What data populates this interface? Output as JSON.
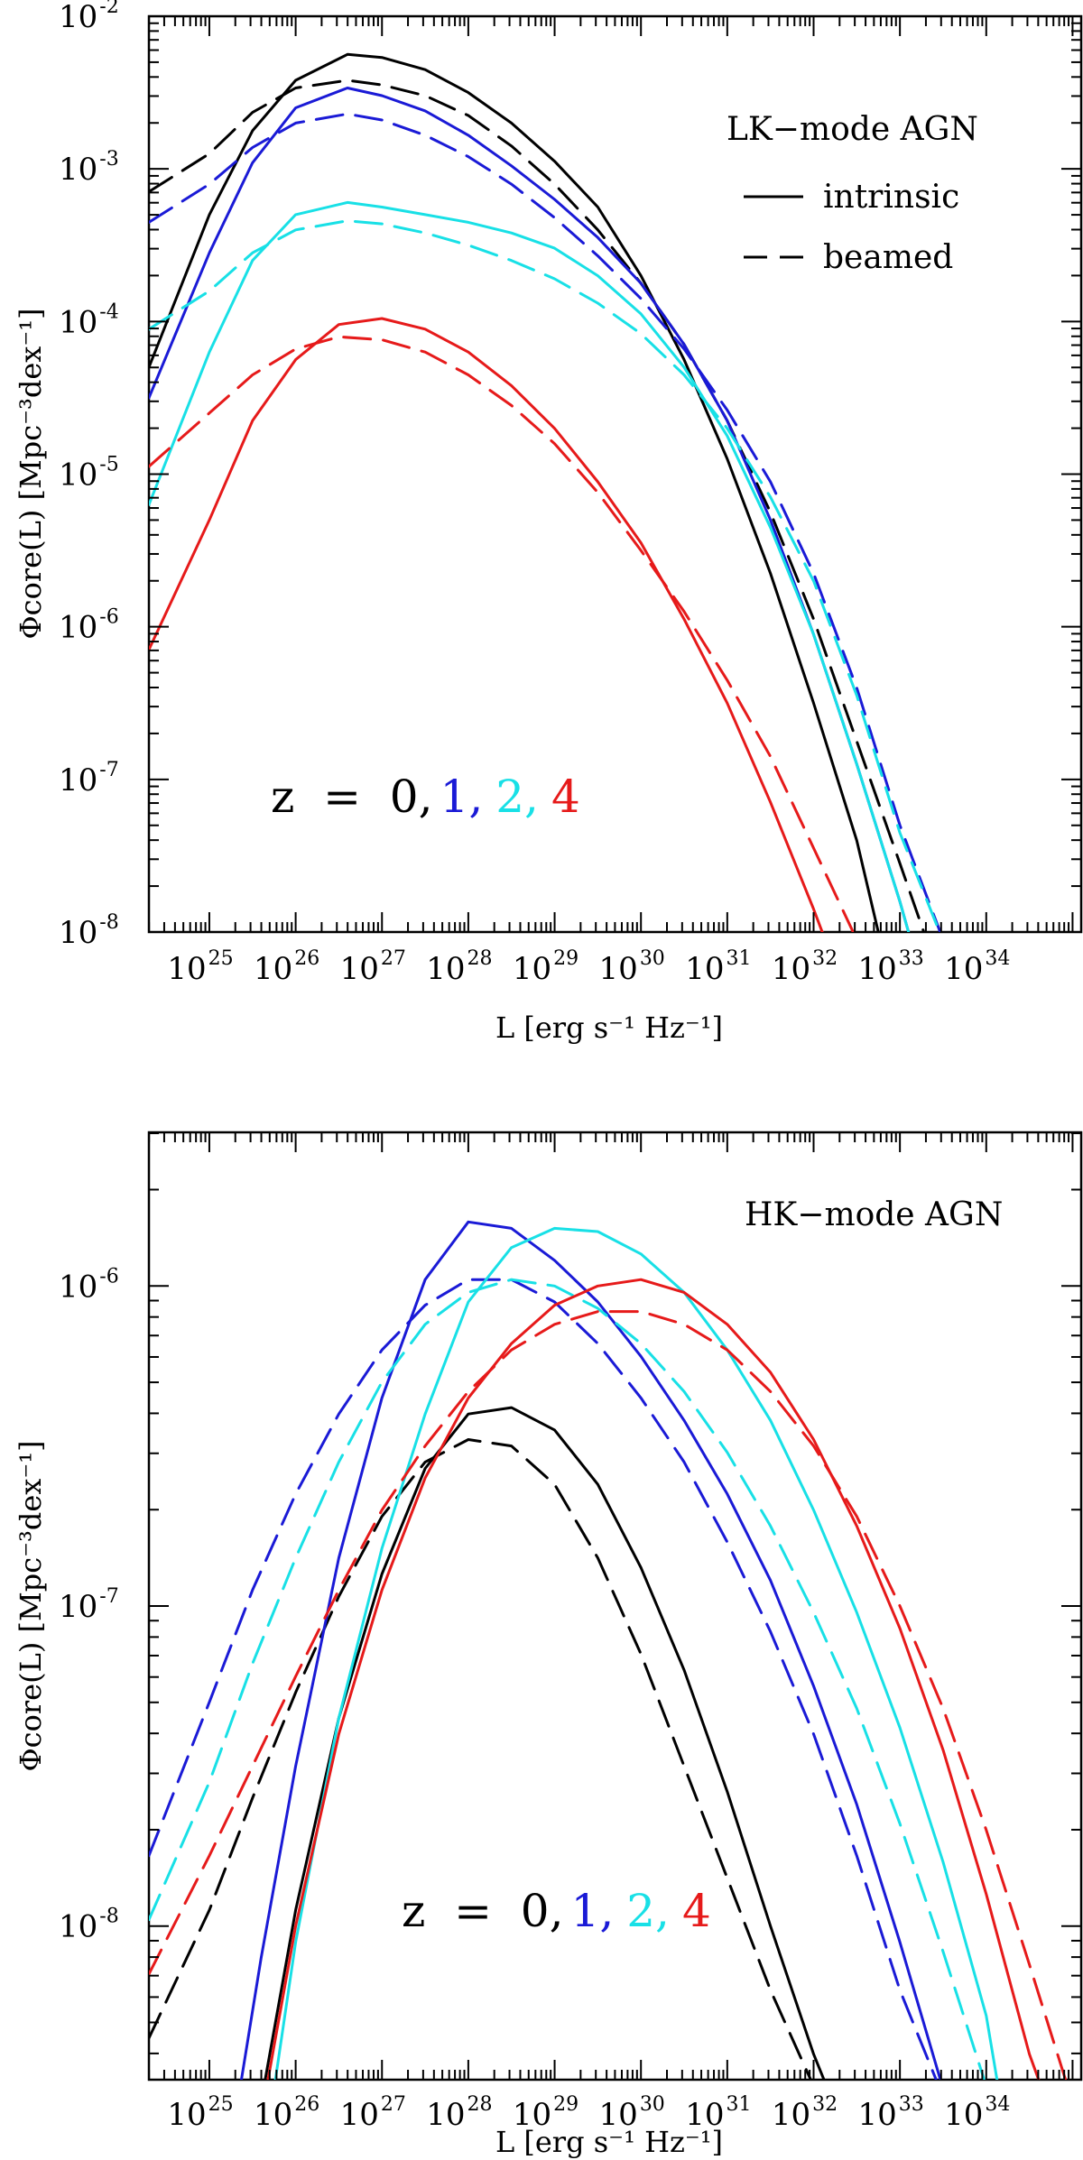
{
  "chart_data": [
    {
      "type": "line",
      "panel": "top",
      "xscale": "log",
      "yscale": "log",
      "xlim_log10": [
        24.3,
        35.1
      ],
      "ylim_log10": [
        -8,
        -2
      ],
      "xlabel": "L [erg s⁻¹ Hz⁻¹]",
      "ylabel": "Φcore(L) [Mpc⁻³dex⁻¹]",
      "xtick_labels": [
        "10",
        "10",
        "10",
        "10",
        "10",
        "10",
        "10",
        "10",
        "10",
        "10"
      ],
      "xtick_exponents": [
        "25",
        "26",
        "27",
        "28",
        "29",
        "30",
        "31",
        "32",
        "33",
        "34"
      ],
      "ytick_labels": [
        "10",
        "10",
        "10",
        "10",
        "10",
        "10",
        "10"
      ],
      "ytick_exponents": [
        "-8",
        "-7",
        "-6",
        "-5",
        "-4",
        "-3",
        "-2"
      ],
      "annotations": {
        "title": "LK−mode AGN",
        "legend_solid": "intrinsic",
        "legend_dashed": "beamed",
        "z_prefix": "z  =  0,",
        "z_1": "1,",
        "z_2": "2,",
        "z_4": "4"
      },
      "series": [
        {
          "name": "z=0 intrinsic",
          "color": "#000000",
          "style": "solid",
          "log10L": [
            24.3,
            25,
            25.5,
            26,
            26.6,
            27,
            27.5,
            28,
            28.5,
            29,
            29.5,
            30,
            30.5,
            31,
            31.5,
            32,
            32.5,
            33
          ],
          "log10Phi": [
            -4.3,
            -3.3,
            -2.75,
            -2.42,
            -2.25,
            -2.27,
            -2.35,
            -2.5,
            -2.7,
            -2.95,
            -3.25,
            -3.7,
            -4.25,
            -4.9,
            -5.65,
            -6.5,
            -7.4,
            -8.6
          ]
        },
        {
          "name": "z=0 beamed",
          "color": "#000000",
          "style": "dashed",
          "log10L": [
            24.3,
            25,
            25.5,
            26,
            26.6,
            27,
            27.5,
            28,
            28.5,
            29,
            29.5,
            30,
            30.5,
            31,
            31.5,
            32,
            32.5,
            33,
            33.4
          ],
          "log10Phi": [
            -3.15,
            -2.9,
            -2.63,
            -2.47,
            -2.42,
            -2.45,
            -2.52,
            -2.65,
            -2.85,
            -3.1,
            -3.4,
            -3.75,
            -4.15,
            -4.65,
            -5.25,
            -5.95,
            -6.75,
            -7.55,
            -8.2
          ]
        },
        {
          "name": "z=1 intrinsic",
          "color": "#1a1ad6",
          "style": "solid",
          "log10L": [
            24.3,
            25,
            25.5,
            26,
            26.6,
            27,
            27.5,
            28,
            28.5,
            29,
            29.5,
            30,
            30.5,
            31,
            31.5,
            32,
            32.5,
            33,
            33.3
          ],
          "log10Phi": [
            -4.5,
            -3.55,
            -2.96,
            -2.6,
            -2.47,
            -2.52,
            -2.62,
            -2.78,
            -2.98,
            -3.2,
            -3.45,
            -3.75,
            -4.15,
            -4.65,
            -5.3,
            -6.05,
            -6.9,
            -7.8,
            -8.4
          ]
        },
        {
          "name": "z=1 beamed",
          "color": "#1a1ad6",
          "style": "dashed",
          "log10L": [
            24.3,
            25,
            25.5,
            26,
            26.6,
            27,
            27.5,
            28,
            28.5,
            29,
            29.5,
            30,
            30.5,
            31,
            31.5,
            32,
            32.5,
            33,
            33.6
          ],
          "log10Phi": [
            -3.35,
            -3.1,
            -2.86,
            -2.7,
            -2.64,
            -2.68,
            -2.78,
            -2.92,
            -3.1,
            -3.32,
            -3.57,
            -3.85,
            -4.18,
            -4.58,
            -5.05,
            -5.65,
            -6.4,
            -7.3,
            -8.2
          ]
        },
        {
          "name": "z=2 intrinsic",
          "color": "#18e0e6",
          "style": "solid",
          "log10L": [
            24.3,
            25,
            25.5,
            26,
            26.6,
            27,
            27.5,
            28,
            28.5,
            29,
            29.5,
            30,
            30.5,
            31,
            31.5,
            32,
            32.5,
            33,
            33.3
          ],
          "log10Phi": [
            -5.2,
            -4.2,
            -3.6,
            -3.3,
            -3.22,
            -3.25,
            -3.3,
            -3.35,
            -3.42,
            -3.52,
            -3.7,
            -3.95,
            -4.3,
            -4.75,
            -5.35,
            -6.05,
            -6.9,
            -7.8,
            -8.4
          ]
        },
        {
          "name": "z=2 beamed",
          "color": "#18e0e6",
          "style": "dashed",
          "log10L": [
            24.3,
            25,
            25.5,
            26,
            26.6,
            27,
            27.5,
            28,
            28.5,
            29,
            29.5,
            30,
            30.5,
            31,
            31.5,
            32,
            32.5,
            33,
            33.6
          ],
          "log10Phi": [
            -4.05,
            -3.8,
            -3.55,
            -3.4,
            -3.34,
            -3.36,
            -3.42,
            -3.5,
            -3.6,
            -3.72,
            -3.88,
            -4.08,
            -4.35,
            -4.7,
            -5.15,
            -5.7,
            -6.45,
            -7.35,
            -8.2
          ]
        },
        {
          "name": "z=4 intrinsic",
          "color": "#e61a1a",
          "style": "solid",
          "log10L": [
            24.3,
            25,
            25.5,
            26,
            26.5,
            27,
            27.5,
            28,
            28.5,
            29,
            29.5,
            30,
            30.5,
            31,
            31.5,
            32,
            32.3
          ],
          "log10Phi": [
            -6.15,
            -5.3,
            -4.65,
            -4.25,
            -4.02,
            -3.98,
            -4.05,
            -4.2,
            -4.42,
            -4.7,
            -5.05,
            -5.45,
            -5.95,
            -6.5,
            -7.15,
            -7.85,
            -8.3
          ]
        },
        {
          "name": "z=4 beamed",
          "color": "#e61a1a",
          "style": "dashed",
          "log10L": [
            24.3,
            25,
            25.5,
            26,
            26.5,
            27,
            27.5,
            28,
            28.5,
            29,
            29.5,
            30,
            30.5,
            31,
            31.5,
            32,
            32.5,
            32.7
          ],
          "log10Phi": [
            -4.95,
            -4.6,
            -4.35,
            -4.18,
            -4.1,
            -4.12,
            -4.2,
            -4.35,
            -4.55,
            -4.8,
            -5.12,
            -5.5,
            -5.9,
            -6.35,
            -6.85,
            -7.45,
            -8.05,
            -8.3
          ]
        }
      ]
    },
    {
      "type": "line",
      "panel": "bottom",
      "xscale": "log",
      "yscale": "log",
      "xlim_log10": [
        24.3,
        35.1
      ],
      "ylim_log10": [
        -8.48,
        -5.52
      ],
      "xlabel": "L [erg s⁻¹ Hz⁻¹]",
      "ylabel": "Φcore(L) [Mpc⁻³dex⁻¹]",
      "xtick_labels": [
        "10",
        "10",
        "10",
        "10",
        "10",
        "10",
        "10",
        "10",
        "10",
        "10"
      ],
      "xtick_exponents": [
        "25",
        "26",
        "27",
        "28",
        "29",
        "30",
        "31",
        "32",
        "33",
        "34"
      ],
      "ytick_labels": [
        "10",
        "10",
        "10"
      ],
      "ytick_exponents": [
        "-8",
        "-7",
        "-6"
      ],
      "annotations": {
        "title": "HK−mode AGN",
        "z_prefix": "z  =  0,",
        "z_1": "1,",
        "z_2": "2,",
        "z_4": "4"
      },
      "series": [
        {
          "name": "z=0 intrinsic",
          "color": "#000000",
          "style": "solid",
          "log10L": [
            25.5,
            26,
            26.5,
            27,
            27.5,
            28,
            28.5,
            29,
            29.5,
            30,
            30.5,
            31,
            31.5,
            32,
            32.3
          ],
          "log10Phi": [
            -8.7,
            -7.95,
            -7.35,
            -6.9,
            -6.57,
            -6.4,
            -6.38,
            -6.45,
            -6.62,
            -6.88,
            -7.2,
            -7.58,
            -8.0,
            -8.4,
            -8.6
          ]
        },
        {
          "name": "z=0 beamed",
          "color": "#000000",
          "style": "dashed",
          "log10L": [
            24.3,
            25,
            25.5,
            26,
            26.5,
            27,
            27.5,
            28,
            28.5,
            29,
            29.5,
            30,
            30.5,
            31,
            31.5,
            32,
            32.3
          ],
          "log10Phi": [
            -8.35,
            -7.95,
            -7.6,
            -7.27,
            -6.97,
            -6.72,
            -6.55,
            -6.48,
            -6.5,
            -6.62,
            -6.85,
            -7.15,
            -7.5,
            -7.85,
            -8.2,
            -8.5,
            -8.65
          ]
        },
        {
          "name": "z=1 intrinsic",
          "color": "#1a1ad6",
          "style": "solid",
          "log10L": [
            25.3,
            25.6,
            26,
            26.5,
            27,
            27.5,
            28,
            28.5,
            29,
            29.5,
            30,
            30.5,
            31,
            31.5,
            32,
            32.5,
            33,
            33.6
          ],
          "log10Phi": [
            -8.6,
            -8.1,
            -7.5,
            -6.85,
            -6.35,
            -5.98,
            -5.8,
            -5.82,
            -5.92,
            -6.05,
            -6.22,
            -6.42,
            -6.65,
            -6.92,
            -7.25,
            -7.62,
            -8.05,
            -8.6
          ]
        },
        {
          "name": "z=1 beamed",
          "color": "#1a1ad6",
          "style": "dashed",
          "log10L": [
            24.3,
            25,
            25.5,
            26,
            26.5,
            27,
            27.5,
            28,
            28.5,
            29,
            29.5,
            30,
            30.5,
            31,
            31.5,
            32,
            32.5,
            33,
            33.6
          ],
          "log10Phi": [
            -7.78,
            -7.3,
            -6.95,
            -6.65,
            -6.4,
            -6.2,
            -6.06,
            -5.98,
            -5.98,
            -6.05,
            -6.18,
            -6.35,
            -6.55,
            -6.8,
            -7.08,
            -7.4,
            -7.78,
            -8.2,
            -8.6
          ]
        },
        {
          "name": "z=2 intrinsic",
          "color": "#18e0e6",
          "style": "solid",
          "log10L": [
            25.7,
            26,
            26.5,
            27,
            27.5,
            28,
            28.5,
            29,
            29.5,
            30,
            30.5,
            31,
            31.5,
            32,
            32.5,
            33,
            33.5,
            34,
            34.2
          ],
          "log10Phi": [
            -8.6,
            -8.05,
            -7.35,
            -6.82,
            -6.4,
            -6.05,
            -5.88,
            -5.82,
            -5.83,
            -5.9,
            -6.02,
            -6.2,
            -6.42,
            -6.7,
            -7.02,
            -7.38,
            -7.8,
            -8.28,
            -8.6
          ]
        },
        {
          "name": "z=2 beamed",
          "color": "#18e0e6",
          "style": "dashed",
          "log10L": [
            24.3,
            25,
            25.5,
            26,
            26.5,
            27,
            27.5,
            28,
            28.5,
            29,
            29.5,
            30,
            30.5,
            31,
            31.5,
            32,
            32.5,
            33,
            33.5,
            34,
            34.3
          ],
          "log10Phi": [
            -7.98,
            -7.55,
            -7.18,
            -6.85,
            -6.55,
            -6.3,
            -6.12,
            -6.02,
            -5.98,
            -6.0,
            -6.07,
            -6.18,
            -6.33,
            -6.52,
            -6.75,
            -7.02,
            -7.32,
            -7.68,
            -8.08,
            -8.5,
            -8.7
          ]
        },
        {
          "name": "z=4 intrinsic",
          "color": "#e61a1a",
          "style": "solid",
          "log10L": [
            25.6,
            26,
            26.5,
            27,
            27.5,
            28,
            28.5,
            29,
            29.5,
            30,
            30.5,
            31,
            31.5,
            32,
            32.5,
            33,
            33.5,
            34,
            34.5,
            34.9
          ],
          "log10Phi": [
            -8.6,
            -8.0,
            -7.4,
            -6.95,
            -6.6,
            -6.35,
            -6.18,
            -6.06,
            -6.0,
            -5.98,
            -6.02,
            -6.12,
            -6.27,
            -6.48,
            -6.75,
            -7.07,
            -7.45,
            -7.9,
            -8.4,
            -8.7
          ]
        },
        {
          "name": "z=4 beamed",
          "color": "#e61a1a",
          "style": "dashed",
          "log10L": [
            24.3,
            25,
            25.5,
            26,
            26.5,
            27,
            27.5,
            28,
            28.5,
            29,
            29.5,
            30,
            30.5,
            31,
            31.5,
            32,
            32.5,
            33,
            33.5,
            34,
            34.5,
            35
          ],
          "log10Phi": [
            -8.15,
            -7.78,
            -7.5,
            -7.22,
            -6.95,
            -6.7,
            -6.5,
            -6.33,
            -6.2,
            -6.12,
            -6.08,
            -6.08,
            -6.12,
            -6.2,
            -6.33,
            -6.5,
            -6.72,
            -7.0,
            -7.32,
            -7.7,
            -8.12,
            -8.55
          ]
        }
      ]
    }
  ]
}
